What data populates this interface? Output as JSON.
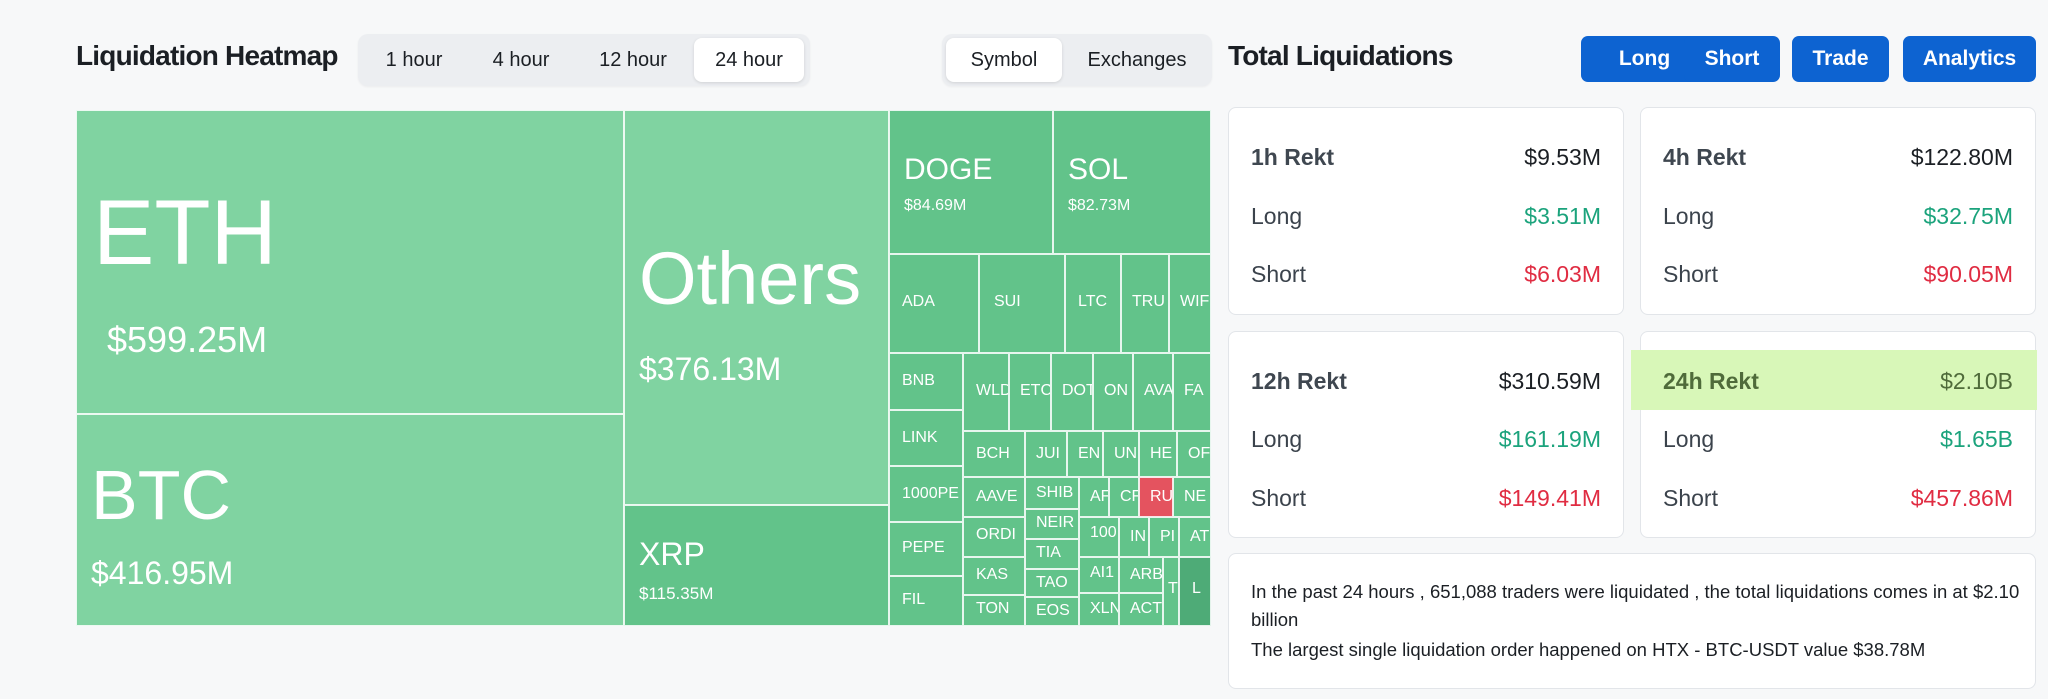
{
  "heatmap": {
    "title": "Liquidation Heatmap",
    "time_tabs": [
      "1 hour",
      "4 hour",
      "12 hour",
      "24 hour"
    ],
    "active_time_tab": "24 hour",
    "view_tabs": [
      "Symbol",
      "Exchanges"
    ],
    "active_view_tab": "Symbol",
    "cells": {
      "eth": {
        "symbol": "ETH",
        "value": "$599.25M"
      },
      "btc": {
        "symbol": "BTC",
        "value": "$416.95M"
      },
      "others": {
        "symbol": "Others",
        "value": "$376.13M"
      },
      "xrp": {
        "symbol": "XRP",
        "value": "$115.35M"
      },
      "doge": {
        "symbol": "DOGE",
        "value": "$84.69M"
      },
      "sol": {
        "symbol": "SOL",
        "value": "$82.73M"
      },
      "ada": "ADA",
      "sui": "SUI",
      "ltc": "LTC",
      "tru": "TRU",
      "wif": "WIF",
      "bnb": "BNB",
      "wld": "WLD",
      "etc": "ETC",
      "dot": "DOT",
      "on": "ON",
      "ava": "AVA",
      "fa": "FA",
      "link": "LINK",
      "bch": "BCH",
      "jup": "JUI",
      "en": "EN",
      "un": "UN",
      "he": "HE",
      "or": "OF",
      "pepe1000": "1000PE",
      "aave": "AAVE",
      "shib": "SHIB",
      "ap": "AF",
      "cr": "CF",
      "ru": "RU",
      "ne": "NE",
      "ordi": "ORDI",
      "neir": "NEIR",
      "pepe": "PEPE",
      "tia": "TIA",
      "c100": "100",
      "in": "IN",
      "pi": "PI",
      "at": "AT",
      "kas": "KAS",
      "tao": "TAO",
      "ai": "AI1",
      "arb": "ARB",
      "fil": "FIL",
      "ton": "TON",
      "eos": "EOS",
      "xln": "XLN",
      "act": "ACT",
      "t": "T",
      "l": "L"
    }
  },
  "total": {
    "title": "Total Liquidations",
    "buttons": [
      "Long",
      "Short",
      "Trade",
      "Analytics"
    ],
    "cards": [
      {
        "label": "1h Rekt",
        "total": "$9.53M",
        "long_label": "Long",
        "long": "$3.51M",
        "short_label": "Short",
        "short": "$6.03M"
      },
      {
        "label": "4h Rekt",
        "total": "$122.80M",
        "long_label": "Long",
        "long": "$32.75M",
        "short_label": "Short",
        "short": "$90.05M"
      },
      {
        "label": "12h Rekt",
        "total": "$310.59M",
        "long_label": "Long",
        "long": "$161.19M",
        "short_label": "Short",
        "short": "$149.41M"
      },
      {
        "label": "24h Rekt",
        "total": "$2.10B",
        "long_label": "Long",
        "long": "$1.65B",
        "short_label": "Short",
        "short": "$457.86M"
      }
    ],
    "summary_line1": "In the past 24 hours , 651,088 traders were liquidated , the total liquidations comes in at $2.10 billion",
    "summary_line2": "The largest single liquidation order happened on HTX - BTC-USDT value $38.78M"
  },
  "colors": {
    "green": "#1ba37c",
    "red": "#e02c42",
    "blue": "#0d63d1",
    "cell_green": "#62c38a",
    "cell_light": "#80d3a1"
  }
}
